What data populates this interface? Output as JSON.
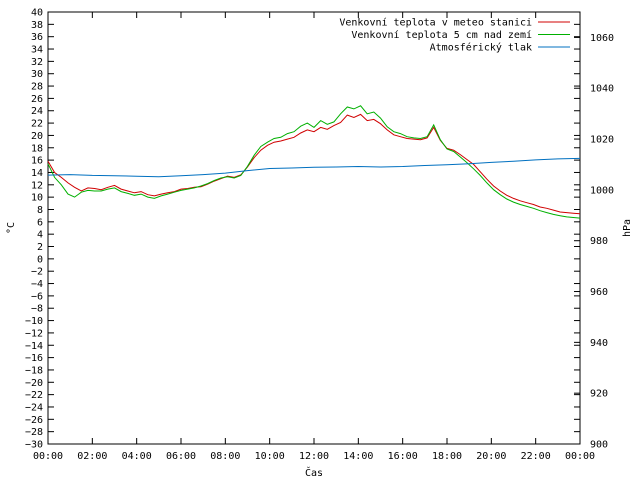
{
  "chart_data": {
    "type": "line",
    "xlabel": "Čas",
    "ylabel_left": "°C",
    "ylabel_right": "hPa",
    "x_ticks": [
      "00:00",
      "02:00",
      "04:00",
      "06:00",
      "08:00",
      "10:00",
      "12:00",
      "14:00",
      "16:00",
      "18:00",
      "20:00",
      "22:00",
      "00:00"
    ],
    "x_range_hours": [
      0,
      24
    ],
    "y_left": {
      "min": -30,
      "max": 40,
      "step": 2
    },
    "y_right": {
      "min": 900,
      "max": 1070,
      "ticks": [
        900,
        920,
        940,
        960,
        980,
        1000,
        1020,
        1040,
        1060
      ]
    },
    "grid": false,
    "legend_position": "top-right",
    "series": [
      {
        "name": "Venkovní teplota v meteo stanici",
        "axis": "left",
        "color": "#d00000",
        "x": [
          0,
          0.3,
          0.6,
          0.9,
          1.2,
          1.5,
          1.8,
          2.1,
          2.4,
          2.7,
          3.0,
          3.3,
          3.6,
          3.9,
          4.2,
          4.5,
          4.8,
          5.1,
          5.4,
          5.7,
          6.0,
          6.3,
          6.6,
          6.9,
          7.2,
          7.5,
          7.8,
          8.1,
          8.4,
          8.7,
          9.0,
          9.3,
          9.6,
          9.9,
          10.2,
          10.5,
          10.8,
          11.1,
          11.4,
          11.7,
          12.0,
          12.3,
          12.6,
          12.9,
          13.2,
          13.5,
          13.8,
          14.1,
          14.4,
          14.7,
          15.0,
          15.3,
          15.6,
          15.9,
          16.2,
          16.5,
          16.8,
          17.1,
          17.4,
          17.7,
          18.0,
          18.3,
          18.6,
          18.9,
          19.2,
          19.5,
          19.8,
          20.1,
          20.4,
          20.7,
          21.0,
          21.3,
          21.6,
          21.9,
          22.2,
          22.5,
          22.8,
          23.1,
          23.4,
          23.7,
          24.0
        ],
        "y": [
          15.8,
          14.0,
          13.2,
          12.3,
          11.6,
          11.0,
          11.5,
          11.4,
          11.2,
          11.6,
          11.9,
          11.3,
          11.0,
          10.7,
          10.9,
          10.4,
          10.2,
          10.5,
          10.7,
          10.9,
          11.3,
          11.4,
          11.6,
          11.7,
          12.1,
          12.6,
          13.0,
          13.4,
          13.2,
          13.6,
          14.9,
          16.4,
          17.6,
          18.4,
          18.9,
          19.1,
          19.4,
          19.7,
          20.4,
          20.9,
          20.6,
          21.3,
          21.0,
          21.6,
          22.1,
          23.3,
          22.9,
          23.4,
          22.4,
          22.6,
          21.9,
          20.9,
          20.1,
          19.8,
          19.5,
          19.4,
          19.3,
          19.6,
          21.3,
          19.2,
          17.9,
          17.6,
          16.9,
          16.1,
          15.3,
          14.1,
          12.9,
          11.8,
          11.0,
          10.3,
          9.8,
          9.4,
          9.1,
          8.8,
          8.4,
          8.2,
          7.9,
          7.6,
          7.5,
          7.4,
          7.3
        ]
      },
      {
        "name": "Venkovní teplota 5 cm nad zemí",
        "axis": "left",
        "color": "#00b000",
        "x": [
          0,
          0.3,
          0.6,
          0.9,
          1.2,
          1.5,
          1.8,
          2.1,
          2.4,
          2.7,
          3.0,
          3.3,
          3.6,
          3.9,
          4.2,
          4.5,
          4.8,
          5.1,
          5.4,
          5.7,
          6.0,
          6.3,
          6.6,
          6.9,
          7.2,
          7.5,
          7.8,
          8.1,
          8.4,
          8.7,
          9.0,
          9.3,
          9.6,
          9.9,
          10.2,
          10.5,
          10.8,
          11.1,
          11.4,
          11.7,
          12.0,
          12.3,
          12.6,
          12.9,
          13.2,
          13.5,
          13.8,
          14.1,
          14.4,
          14.7,
          15.0,
          15.3,
          15.6,
          15.9,
          16.2,
          16.5,
          16.8,
          17.1,
          17.4,
          17.7,
          18.0,
          18.3,
          18.6,
          18.9,
          19.2,
          19.5,
          19.8,
          20.1,
          20.4,
          20.7,
          21.0,
          21.3,
          21.6,
          21.9,
          22.2,
          22.5,
          22.8,
          23.1,
          23.4,
          23.7,
          24.0
        ],
        "y": [
          15.4,
          13.2,
          12.0,
          10.5,
          10.0,
          10.8,
          11.1,
          11.0,
          11.0,
          11.3,
          11.5,
          10.9,
          10.6,
          10.3,
          10.5,
          10.0,
          9.8,
          10.2,
          10.5,
          10.8,
          11.1,
          11.3,
          11.5,
          11.8,
          12.2,
          12.7,
          13.1,
          13.3,
          13.1,
          13.5,
          15.0,
          16.8,
          18.2,
          18.9,
          19.5,
          19.7,
          20.3,
          20.6,
          21.5,
          22.0,
          21.3,
          22.4,
          21.8,
          22.2,
          23.5,
          24.6,
          24.3,
          24.8,
          23.5,
          23.8,
          22.8,
          21.4,
          20.6,
          20.3,
          19.8,
          19.6,
          19.5,
          19.8,
          21.7,
          19.3,
          17.8,
          17.4,
          16.5,
          15.6,
          14.6,
          13.5,
          12.3,
          11.2,
          10.4,
          9.7,
          9.2,
          8.8,
          8.5,
          8.2,
          7.8,
          7.5,
          7.2,
          7.0,
          6.8,
          6.7,
          6.6
        ]
      },
      {
        "name": "Atmosférický tlak",
        "axis": "right",
        "color": "#0070c0",
        "x": [
          0,
          1,
          2,
          3,
          4,
          5,
          6,
          7,
          8,
          9,
          10,
          11,
          12,
          13,
          14,
          15,
          16,
          17,
          18,
          19,
          20,
          21,
          22,
          23,
          24
        ],
        "y": [
          1005.8,
          1006.0,
          1005.7,
          1005.6,
          1005.4,
          1005.2,
          1005.6,
          1006.0,
          1006.6,
          1007.6,
          1008.4,
          1008.6,
          1008.9,
          1009.0,
          1009.2,
          1009.0,
          1009.2,
          1009.6,
          1009.9,
          1010.3,
          1010.8,
          1011.3,
          1011.8,
          1012.2,
          1012.4
        ]
      }
    ]
  }
}
